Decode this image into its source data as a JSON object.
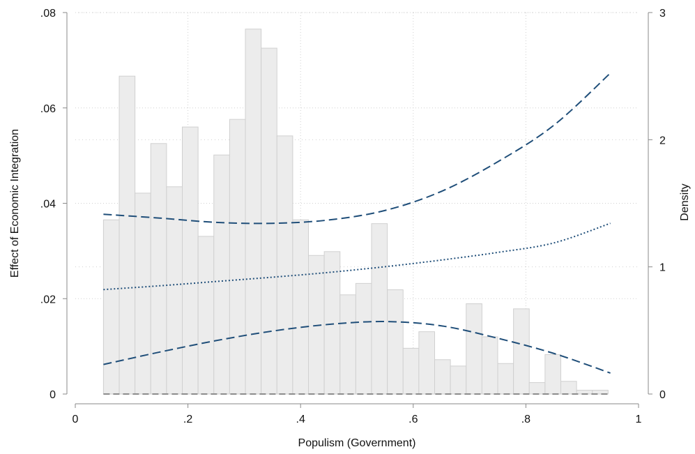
{
  "chart_data": {
    "type": "bar",
    "x_axis": {
      "label": "Populism (Government)",
      "range": [
        0,
        1
      ],
      "ticks": [
        0,
        0.2,
        0.4,
        0.6,
        0.8,
        1
      ],
      "tick_labels": [
        "0",
        ".2",
        ".4",
        ".6",
        ".8",
        "1"
      ]
    },
    "y_axis_left": {
      "label": "Effect of Economic Integration",
      "range": [
        0,
        0.08
      ],
      "ticks": [
        0,
        0.02,
        0.04,
        0.06,
        0.08
      ],
      "tick_labels": [
        "0",
        ".02",
        ".04",
        ".06",
        ".08"
      ]
    },
    "y_axis_right": {
      "label": "Density",
      "range": [
        0,
        3
      ],
      "ticks": [
        0,
        1,
        2,
        3
      ],
      "tick_labels": [
        "0",
        "1",
        "2",
        "3"
      ]
    },
    "grid": true,
    "histogram": {
      "axis": "right",
      "bin_width": 0.028,
      "bins": [
        {
          "x0": 0.05,
          "density": 1.37
        },
        {
          "x0": 0.078,
          "density": 2.5
        },
        {
          "x0": 0.106,
          "density": 1.58
        },
        {
          "x0": 0.134,
          "density": 1.97
        },
        {
          "x0": 0.162,
          "density": 1.63
        },
        {
          "x0": 0.19,
          "density": 2.1
        },
        {
          "x0": 0.218,
          "density": 1.24
        },
        {
          "x0": 0.246,
          "density": 1.88
        },
        {
          "x0": 0.274,
          "density": 2.16
        },
        {
          "x0": 0.302,
          "density": 2.87
        },
        {
          "x0": 0.33,
          "density": 2.72
        },
        {
          "x0": 0.358,
          "density": 2.03
        },
        {
          "x0": 0.386,
          "density": 1.37
        },
        {
          "x0": 0.414,
          "density": 1.09
        },
        {
          "x0": 0.442,
          "density": 1.12
        },
        {
          "x0": 0.47,
          "density": 0.78
        },
        {
          "x0": 0.498,
          "density": 0.87
        },
        {
          "x0": 0.526,
          "density": 1.34
        },
        {
          "x0": 0.554,
          "density": 0.82
        },
        {
          "x0": 0.582,
          "density": 0.36
        },
        {
          "x0": 0.61,
          "density": 0.49
        },
        {
          "x0": 0.638,
          "density": 0.27
        },
        {
          "x0": 0.666,
          "density": 0.22
        },
        {
          "x0": 0.694,
          "density": 0.71
        },
        {
          "x0": 0.722,
          "density": 0.45
        },
        {
          "x0": 0.75,
          "density": 0.24
        },
        {
          "x0": 0.778,
          "density": 0.67
        },
        {
          "x0": 0.806,
          "density": 0.09
        },
        {
          "x0": 0.834,
          "density": 0.31
        },
        {
          "x0": 0.862,
          "density": 0.1
        },
        {
          "x0": 0.89,
          "density": 0.03
        },
        {
          "x0": 0.918,
          "density": 0.03
        }
      ]
    },
    "series": [
      {
        "role": "point-estimate",
        "style": "dotted",
        "axis": "left",
        "x": [
          0.05,
          0.15,
          0.25,
          0.35,
          0.45,
          0.55,
          0.65,
          0.75,
          0.85,
          0.95
        ],
        "y": [
          0.0219,
          0.0227,
          0.0236,
          0.0245,
          0.0255,
          0.0267,
          0.0281,
          0.0297,
          0.0317,
          0.0358
        ]
      },
      {
        "role": "upper-confidence-bound",
        "style": "dashed",
        "axis": "left",
        "x": [
          0.05,
          0.15,
          0.25,
          0.35,
          0.45,
          0.55,
          0.65,
          0.75,
          0.85,
          0.95
        ],
        "y": [
          0.0377,
          0.0369,
          0.036,
          0.0358,
          0.0365,
          0.0385,
          0.0425,
          0.0487,
          0.0564,
          0.0673
        ]
      },
      {
        "role": "lower-confidence-bound",
        "style": "dashed",
        "axis": "left",
        "x": [
          0.05,
          0.15,
          0.25,
          0.35,
          0.45,
          0.55,
          0.65,
          0.75,
          0.85,
          0.95
        ],
        "y": [
          0.0062,
          0.0088,
          0.0112,
          0.0132,
          0.0146,
          0.0152,
          0.0143,
          0.0117,
          0.0085,
          0.0044
        ]
      },
      {
        "role": "zero-reference",
        "style": "dashed",
        "axis": "left",
        "x": [
          0.05,
          0.95
        ],
        "y": [
          0,
          0
        ]
      }
    ],
    "colors": {
      "bar_fill": "#ececec",
      "bar_edge": "#d0d0d0",
      "curve": "#1f4e79",
      "zero_line": "#8c8c8c",
      "grid": "#d0d0d0",
      "axis": "#888888"
    }
  }
}
